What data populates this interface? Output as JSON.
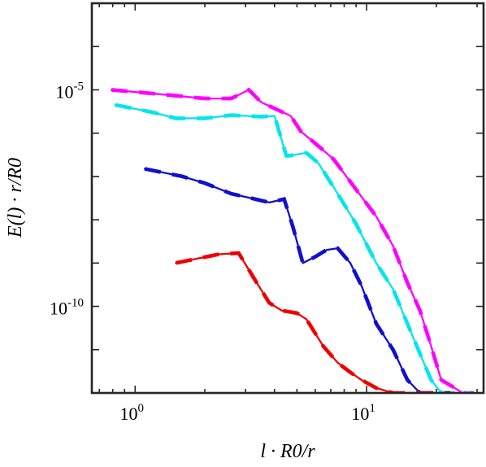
{
  "chart_data": {
    "type": "line",
    "title": "",
    "xlabel": "l · R0/r",
    "ylabel": "E(l) · r/R0",
    "xscale": "log",
    "yscale": "log",
    "xlim": [
      0.65,
      32
    ],
    "ylim": [
      1e-12,
      0.001
    ],
    "x_ticks": [
      {
        "value": 1,
        "base": "10",
        "exp": "0"
      },
      {
        "value": 10,
        "base": "10",
        "exp": "1"
      }
    ],
    "y_ticks": [
      {
        "value": 1e-05,
        "base": "10",
        "exp": "-5"
      },
      {
        "value": 1e-10,
        "base": "10",
        "exp": "-10"
      }
    ],
    "grid": false,
    "legend": "none",
    "series": [
      {
        "color": "#ff00ff",
        "x": [
          0.79,
          1.4,
          2.0,
          2.6,
          3.1,
          3.5,
          4.2,
          4.7,
          5.2,
          6.2,
          7.2,
          9.0,
          11,
          13,
          15,
          17,
          19,
          21,
          23,
          26,
          29
        ],
        "y": [
          1e-05,
          7.6e-06,
          6.3e-06,
          6.3e-06,
          1e-05,
          5.2e-06,
          3.3e-06,
          2.5e-06,
          1.1e-06,
          5e-07,
          2.5e-07,
          5e-08,
          1.2e-08,
          2.5e-09,
          3.5e-10,
          8e-11,
          1.2e-11,
          2e-12,
          1.5e-12,
          1e-12,
          1e-12
        ]
      },
      {
        "color": "#00e5ee",
        "x": [
          0.82,
          1.2,
          1.5,
          2.0,
          2.6,
          3.5,
          4.0,
          4.5,
          4.6,
          5.5,
          6.2,
          7.5,
          9.0,
          11,
          13,
          15,
          17,
          19,
          21,
          23,
          26,
          28
        ],
        "y": [
          4.5e-06,
          3e-06,
          2.2e-06,
          2.2e-06,
          2.6e-06,
          2.4e-06,
          2.5e-06,
          3e-07,
          3e-07,
          3.5e-07,
          2e-07,
          4e-08,
          8e-09,
          1e-09,
          2.5e-10,
          4e-11,
          8e-12,
          2e-12,
          1e-12,
          1e-12,
          1e-12,
          1e-12
        ]
      },
      {
        "color": "#1010cc",
        "x": [
          1.1,
          1.6,
          2.0,
          2.6,
          3.3,
          3.8,
          4.4,
          4.8,
          5.3,
          6.0,
          6.7,
          7.5,
          8.5,
          9.5,
          11,
          13,
          15,
          17,
          19,
          21,
          23
        ],
        "y": [
          1.5e-07,
          1e-07,
          7e-08,
          4e-08,
          3e-08,
          2.5e-08,
          3e-08,
          7e-09,
          1e-09,
          1.4e-09,
          2e-09,
          2.2e-09,
          1e-09,
          3e-10,
          4e-11,
          1e-11,
          2e-12,
          1e-12,
          1e-12,
          1e-12,
          1e-12
        ]
      },
      {
        "color": "#ee0000",
        "x": [
          1.5,
          1.9,
          2.3,
          2.8,
          3.3,
          3.8,
          4.3,
          5.0,
          5.5,
          6.5,
          7.5,
          8.5,
          9.5,
          11,
          13,
          15,
          17,
          19
        ],
        "y": [
          1e-09,
          1.3e-09,
          1.6e-09,
          1.7e-09,
          4e-10,
          1.2e-10,
          8e-11,
          7e-11,
          5e-11,
          1.2e-11,
          5e-12,
          3e-12,
          2e-12,
          1.3e-12,
          1e-12,
          1e-12,
          1e-12,
          1e-12
        ]
      }
    ]
  }
}
